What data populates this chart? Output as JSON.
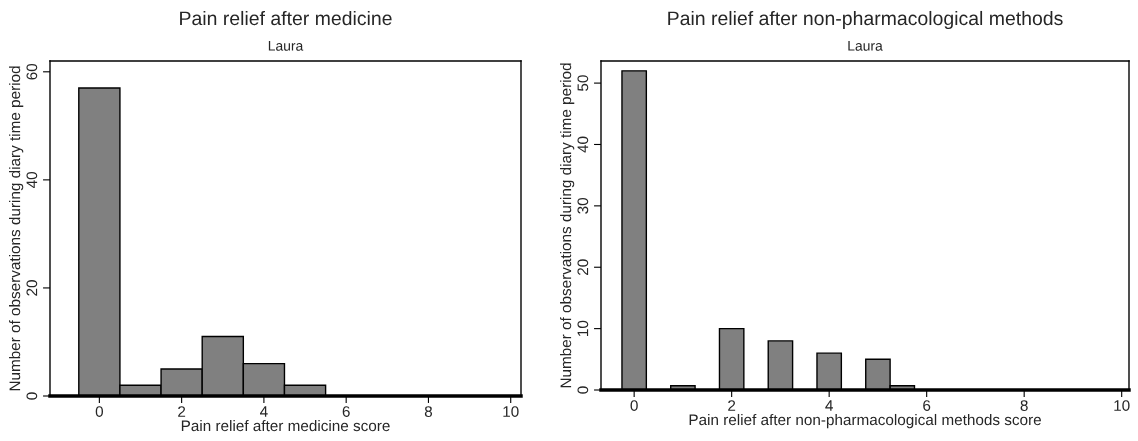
{
  "chart_data": [
    {
      "type": "histogram",
      "title": "Pain relief after medicine",
      "subtitle": "Laura",
      "xlabel": "Pain relief after medicine score",
      "ylabel": "Number of observations during diary time period",
      "bins": [
        -0.5,
        0.5,
        1.5,
        2.5,
        3.5,
        4.5,
        5.5
      ],
      "values": [
        57,
        2,
        5,
        11,
        6,
        2
      ],
      "color": "#808080",
      "xlim": [
        -1.2,
        10.25
      ],
      "xticks": [
        0,
        2,
        4,
        6,
        8,
        10
      ],
      "ylim": [
        0,
        62
      ],
      "yticks": [
        0,
        20,
        40,
        60
      ]
    },
    {
      "type": "histogram",
      "title": "Pain relief after non-pharmacological methods",
      "subtitle": "Laura",
      "xlabel": "Pain relief after non-pharmacological methods score",
      "ylabel": "Number of observations during diary time period",
      "bins": [
        -0.25,
        0.25,
        0.75,
        1.25,
        1.75,
        2.25,
        2.75,
        3.25,
        3.75,
        4.25,
        4.75,
        5.25,
        5.75
      ],
      "values": [
        52,
        0,
        0.7,
        0,
        10,
        0,
        8,
        0,
        6,
        0,
        5,
        0.7
      ],
      "color": "#808080",
      "xlim": [
        -0.68,
        10.15
      ],
      "xticks": [
        0,
        2,
        4,
        6,
        8,
        10
      ],
      "ylim": [
        0,
        53.6
      ],
      "yticks": [
        0,
        10,
        20,
        30,
        40,
        50
      ]
    }
  ]
}
